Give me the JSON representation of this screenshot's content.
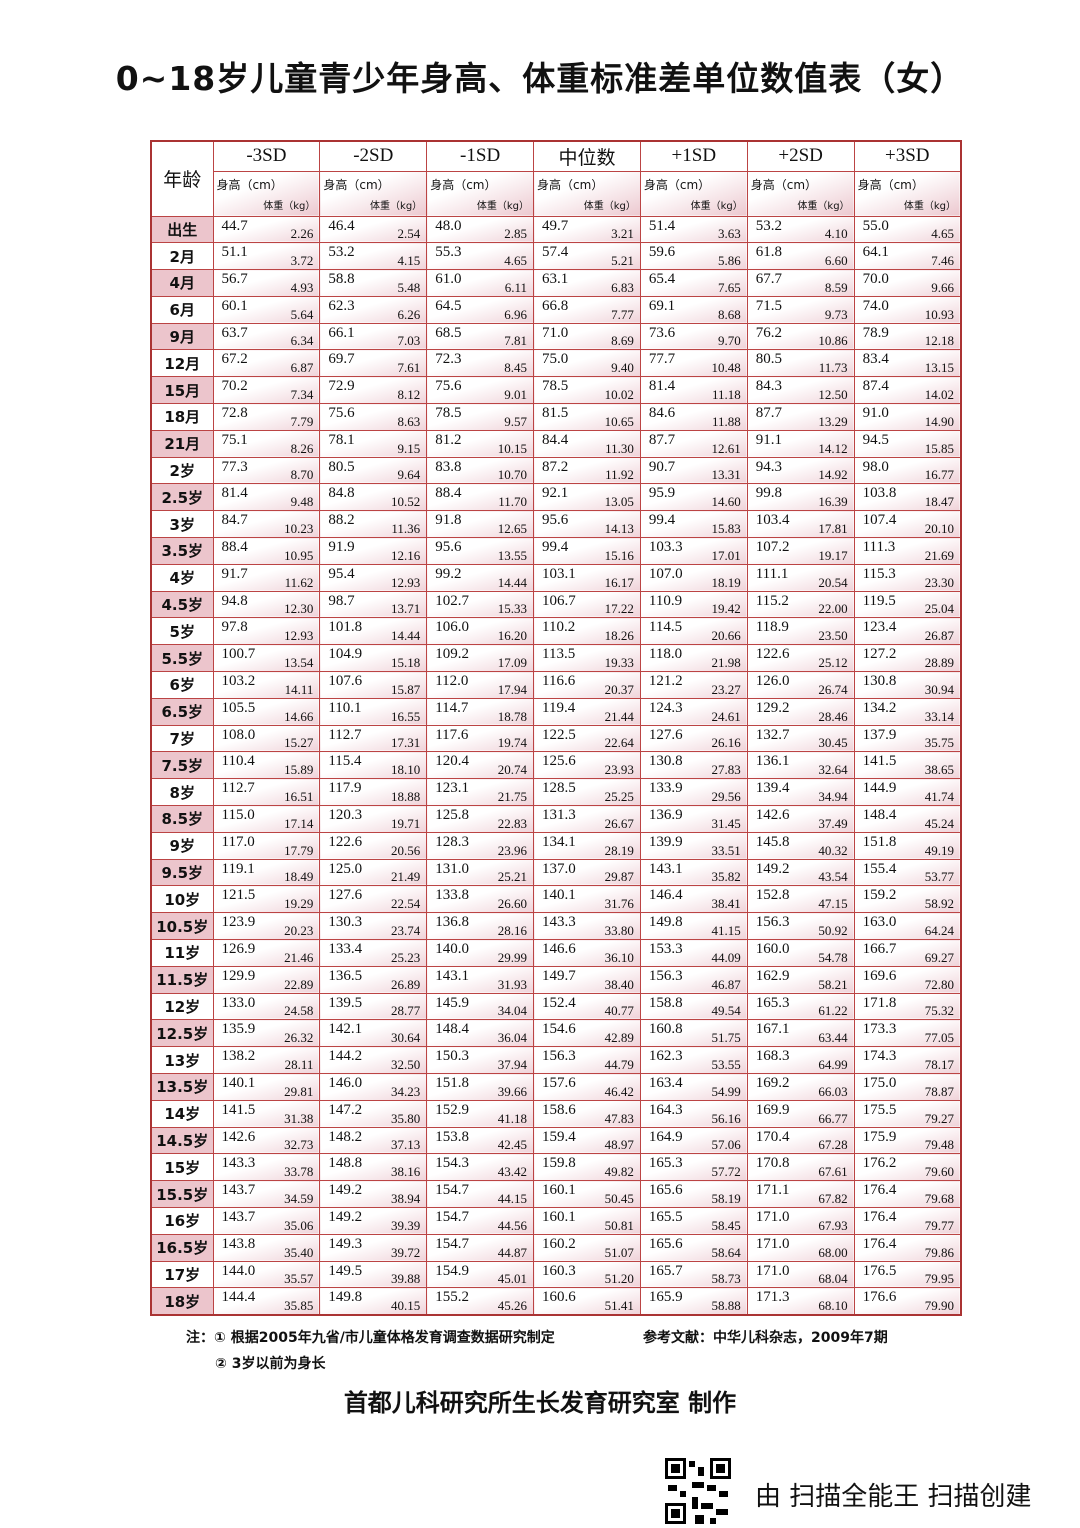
{
  "title": "0~18岁儿童青少年身高、体重标准差单位数值表（女）",
  "header": {
    "age": "年龄",
    "columns": [
      "-3SD",
      "-2SD",
      "-1SD",
      "中位数",
      "+1SD",
      "+2SD",
      "+3SD"
    ],
    "height_label": "身高（cm）",
    "weight_label": "体重（kg）"
  },
  "rows": [
    [
      "出生",
      [
        "44.7",
        "2.26"
      ],
      [
        "46.4",
        "2.54"
      ],
      [
        "48.0",
        "2.85"
      ],
      [
        "49.7",
        "3.21"
      ],
      [
        "51.4",
        "3.63"
      ],
      [
        "53.2",
        "4.10"
      ],
      [
        "55.0",
        "4.65"
      ]
    ],
    [
      "2月",
      [
        "51.1",
        "3.72"
      ],
      [
        "53.2",
        "4.15"
      ],
      [
        "55.3",
        "4.65"
      ],
      [
        "57.4",
        "5.21"
      ],
      [
        "59.6",
        "5.86"
      ],
      [
        "61.8",
        "6.60"
      ],
      [
        "64.1",
        "7.46"
      ]
    ],
    [
      "4月",
      [
        "56.7",
        "4.93"
      ],
      [
        "58.8",
        "5.48"
      ],
      [
        "61.0",
        "6.11"
      ],
      [
        "63.1",
        "6.83"
      ],
      [
        "65.4",
        "7.65"
      ],
      [
        "67.7",
        "8.59"
      ],
      [
        "70.0",
        "9.66"
      ]
    ],
    [
      "6月",
      [
        "60.1",
        "5.64"
      ],
      [
        "62.3",
        "6.26"
      ],
      [
        "64.5",
        "6.96"
      ],
      [
        "66.8",
        "7.77"
      ],
      [
        "69.1",
        "8.68"
      ],
      [
        "71.5",
        "9.73"
      ],
      [
        "74.0",
        "10.93"
      ]
    ],
    [
      "9月",
      [
        "63.7",
        "6.34"
      ],
      [
        "66.1",
        "7.03"
      ],
      [
        "68.5",
        "7.81"
      ],
      [
        "71.0",
        "8.69"
      ],
      [
        "73.6",
        "9.70"
      ],
      [
        "76.2",
        "10.86"
      ],
      [
        "78.9",
        "12.18"
      ]
    ],
    [
      "12月",
      [
        "67.2",
        "6.87"
      ],
      [
        "69.7",
        "7.61"
      ],
      [
        "72.3",
        "8.45"
      ],
      [
        "75.0",
        "9.40"
      ],
      [
        "77.7",
        "10.48"
      ],
      [
        "80.5",
        "11.73"
      ],
      [
        "83.4",
        "13.15"
      ]
    ],
    [
      "15月",
      [
        "70.2",
        "7.34"
      ],
      [
        "72.9",
        "8.12"
      ],
      [
        "75.6",
        "9.01"
      ],
      [
        "78.5",
        "10.02"
      ],
      [
        "81.4",
        "11.18"
      ],
      [
        "84.3",
        "12.50"
      ],
      [
        "87.4",
        "14.02"
      ]
    ],
    [
      "18月",
      [
        "72.8",
        "7.79"
      ],
      [
        "75.6",
        "8.63"
      ],
      [
        "78.5",
        "9.57"
      ],
      [
        "81.5",
        "10.65"
      ],
      [
        "84.6",
        "11.88"
      ],
      [
        "87.7",
        "13.29"
      ],
      [
        "91.0",
        "14.90"
      ]
    ],
    [
      "21月",
      [
        "75.1",
        "8.26"
      ],
      [
        "78.1",
        "9.15"
      ],
      [
        "81.2",
        "10.15"
      ],
      [
        "84.4",
        "11.30"
      ],
      [
        "87.7",
        "12.61"
      ],
      [
        "91.1",
        "14.12"
      ],
      [
        "94.5",
        "15.85"
      ]
    ],
    [
      "2岁",
      [
        "77.3",
        "8.70"
      ],
      [
        "80.5",
        "9.64"
      ],
      [
        "83.8",
        "10.70"
      ],
      [
        "87.2",
        "11.92"
      ],
      [
        "90.7",
        "13.31"
      ],
      [
        "94.3",
        "14.92"
      ],
      [
        "98.0",
        "16.77"
      ]
    ],
    [
      "2.5岁",
      [
        "81.4",
        "9.48"
      ],
      [
        "84.8",
        "10.52"
      ],
      [
        "88.4",
        "11.70"
      ],
      [
        "92.1",
        "13.05"
      ],
      [
        "95.9",
        "14.60"
      ],
      [
        "99.8",
        "16.39"
      ],
      [
        "103.8",
        "18.47"
      ]
    ],
    [
      "3岁",
      [
        "84.7",
        "10.23"
      ],
      [
        "88.2",
        "11.36"
      ],
      [
        "91.8",
        "12.65"
      ],
      [
        "95.6",
        "14.13"
      ],
      [
        "99.4",
        "15.83"
      ],
      [
        "103.4",
        "17.81"
      ],
      [
        "107.4",
        "20.10"
      ]
    ],
    [
      "3.5岁",
      [
        "88.4",
        "10.95"
      ],
      [
        "91.9",
        "12.16"
      ],
      [
        "95.6",
        "13.55"
      ],
      [
        "99.4",
        "15.16"
      ],
      [
        "103.3",
        "17.01"
      ],
      [
        "107.2",
        "19.17"
      ],
      [
        "111.3",
        "21.69"
      ]
    ],
    [
      "4岁",
      [
        "91.7",
        "11.62"
      ],
      [
        "95.4",
        "12.93"
      ],
      [
        "99.2",
        "14.44"
      ],
      [
        "103.1",
        "16.17"
      ],
      [
        "107.0",
        "18.19"
      ],
      [
        "111.1",
        "20.54"
      ],
      [
        "115.3",
        "23.30"
      ]
    ],
    [
      "4.5岁",
      [
        "94.8",
        "12.30"
      ],
      [
        "98.7",
        "13.71"
      ],
      [
        "102.7",
        "15.33"
      ],
      [
        "106.7",
        "17.22"
      ],
      [
        "110.9",
        "19.42"
      ],
      [
        "115.2",
        "22.00"
      ],
      [
        "119.5",
        "25.04"
      ]
    ],
    [
      "5岁",
      [
        "97.8",
        "12.93"
      ],
      [
        "101.8",
        "14.44"
      ],
      [
        "106.0",
        "16.20"
      ],
      [
        "110.2",
        "18.26"
      ],
      [
        "114.5",
        "20.66"
      ],
      [
        "118.9",
        "23.50"
      ],
      [
        "123.4",
        "26.87"
      ]
    ],
    [
      "5.5岁",
      [
        "100.7",
        "13.54"
      ],
      [
        "104.9",
        "15.18"
      ],
      [
        "109.2",
        "17.09"
      ],
      [
        "113.5",
        "19.33"
      ],
      [
        "118.0",
        "21.98"
      ],
      [
        "122.6",
        "25.12"
      ],
      [
        "127.2",
        "28.89"
      ]
    ],
    [
      "6岁",
      [
        "103.2",
        "14.11"
      ],
      [
        "107.6",
        "15.87"
      ],
      [
        "112.0",
        "17.94"
      ],
      [
        "116.6",
        "20.37"
      ],
      [
        "121.2",
        "23.27"
      ],
      [
        "126.0",
        "26.74"
      ],
      [
        "130.8",
        "30.94"
      ]
    ],
    [
      "6.5岁",
      [
        "105.5",
        "14.66"
      ],
      [
        "110.1",
        "16.55"
      ],
      [
        "114.7",
        "18.78"
      ],
      [
        "119.4",
        "21.44"
      ],
      [
        "124.3",
        "24.61"
      ],
      [
        "129.2",
        "28.46"
      ],
      [
        "134.2",
        "33.14"
      ]
    ],
    [
      "7岁",
      [
        "108.0",
        "15.27"
      ],
      [
        "112.7",
        "17.31"
      ],
      [
        "117.6",
        "19.74"
      ],
      [
        "122.5",
        "22.64"
      ],
      [
        "127.6",
        "26.16"
      ],
      [
        "132.7",
        "30.45"
      ],
      [
        "137.9",
        "35.75"
      ]
    ],
    [
      "7.5岁",
      [
        "110.4",
        "15.89"
      ],
      [
        "115.4",
        "18.10"
      ],
      [
        "120.4",
        "20.74"
      ],
      [
        "125.6",
        "23.93"
      ],
      [
        "130.8",
        "27.83"
      ],
      [
        "136.1",
        "32.64"
      ],
      [
        "141.5",
        "38.65"
      ]
    ],
    [
      "8岁",
      [
        "112.7",
        "16.51"
      ],
      [
        "117.9",
        "18.88"
      ],
      [
        "123.1",
        "21.75"
      ],
      [
        "128.5",
        "25.25"
      ],
      [
        "133.9",
        "29.56"
      ],
      [
        "139.4",
        "34.94"
      ],
      [
        "144.9",
        "41.74"
      ]
    ],
    [
      "8.5岁",
      [
        "115.0",
        "17.14"
      ],
      [
        "120.3",
        "19.71"
      ],
      [
        "125.8",
        "22.83"
      ],
      [
        "131.3",
        "26.67"
      ],
      [
        "136.9",
        "31.45"
      ],
      [
        "142.6",
        "37.49"
      ],
      [
        "148.4",
        "45.24"
      ]
    ],
    [
      "9岁",
      [
        "117.0",
        "17.79"
      ],
      [
        "122.6",
        "20.56"
      ],
      [
        "128.3",
        "23.96"
      ],
      [
        "134.1",
        "28.19"
      ],
      [
        "139.9",
        "33.51"
      ],
      [
        "145.8",
        "40.32"
      ],
      [
        "151.8",
        "49.19"
      ]
    ],
    [
      "9.5岁",
      [
        "119.1",
        "18.49"
      ],
      [
        "125.0",
        "21.49"
      ],
      [
        "131.0",
        "25.21"
      ],
      [
        "137.0",
        "29.87"
      ],
      [
        "143.1",
        "35.82"
      ],
      [
        "149.2",
        "43.54"
      ],
      [
        "155.4",
        "53.77"
      ]
    ],
    [
      "10岁",
      [
        "121.5",
        "19.29"
      ],
      [
        "127.6",
        "22.54"
      ],
      [
        "133.8",
        "26.60"
      ],
      [
        "140.1",
        "31.76"
      ],
      [
        "146.4",
        "38.41"
      ],
      [
        "152.8",
        "47.15"
      ],
      [
        "159.2",
        "58.92"
      ]
    ],
    [
      "10.5岁",
      [
        "123.9",
        "20.23"
      ],
      [
        "130.3",
        "23.74"
      ],
      [
        "136.8",
        "28.16"
      ],
      [
        "143.3",
        "33.80"
      ],
      [
        "149.8",
        "41.15"
      ],
      [
        "156.3",
        "50.92"
      ],
      [
        "163.0",
        "64.24"
      ]
    ],
    [
      "11岁",
      [
        "126.9",
        "21.46"
      ],
      [
        "133.4",
        "25.23"
      ],
      [
        "140.0",
        "29.99"
      ],
      [
        "146.6",
        "36.10"
      ],
      [
        "153.3",
        "44.09"
      ],
      [
        "160.0",
        "54.78"
      ],
      [
        "166.7",
        "69.27"
      ]
    ],
    [
      "11.5岁",
      [
        "129.9",
        "22.89"
      ],
      [
        "136.5",
        "26.89"
      ],
      [
        "143.1",
        "31.93"
      ],
      [
        "149.7",
        "38.40"
      ],
      [
        "156.3",
        "46.87"
      ],
      [
        "162.9",
        "58.21"
      ],
      [
        "169.6",
        "72.80"
      ]
    ],
    [
      "12岁",
      [
        "133.0",
        "24.58"
      ],
      [
        "139.5",
        "28.77"
      ],
      [
        "145.9",
        "34.04"
      ],
      [
        "152.4",
        "40.77"
      ],
      [
        "158.8",
        "49.54"
      ],
      [
        "165.3",
        "61.22"
      ],
      [
        "171.8",
        "75.32"
      ]
    ],
    [
      "12.5岁",
      [
        "135.9",
        "26.32"
      ],
      [
        "142.1",
        "30.64"
      ],
      [
        "148.4",
        "36.04"
      ],
      [
        "154.6",
        "42.89"
      ],
      [
        "160.8",
        "51.75"
      ],
      [
        "167.1",
        "63.44"
      ],
      [
        "173.3",
        "77.05"
      ]
    ],
    [
      "13岁",
      [
        "138.2",
        "28.11"
      ],
      [
        "144.2",
        "32.50"
      ],
      [
        "150.3",
        "37.94"
      ],
      [
        "156.3",
        "44.79"
      ],
      [
        "162.3",
        "53.55"
      ],
      [
        "168.3",
        "64.99"
      ],
      [
        "174.3",
        "78.17"
      ]
    ],
    [
      "13.5岁",
      [
        "140.1",
        "29.81"
      ],
      [
        "146.0",
        "34.23"
      ],
      [
        "151.8",
        "39.66"
      ],
      [
        "157.6",
        "46.42"
      ],
      [
        "163.4",
        "54.99"
      ],
      [
        "169.2",
        "66.03"
      ],
      [
        "175.0",
        "78.87"
      ]
    ],
    [
      "14岁",
      [
        "141.5",
        "31.38"
      ],
      [
        "147.2",
        "35.80"
      ],
      [
        "152.9",
        "41.18"
      ],
      [
        "158.6",
        "47.83"
      ],
      [
        "164.3",
        "56.16"
      ],
      [
        "169.9",
        "66.77"
      ],
      [
        "175.5",
        "79.27"
      ]
    ],
    [
      "14.5岁",
      [
        "142.6",
        "32.73"
      ],
      [
        "148.2",
        "37.13"
      ],
      [
        "153.8",
        "42.45"
      ],
      [
        "159.4",
        "48.97"
      ],
      [
        "164.9",
        "57.06"
      ],
      [
        "170.4",
        "67.28"
      ],
      [
        "175.9",
        "79.48"
      ]
    ],
    [
      "15岁",
      [
        "143.3",
        "33.78"
      ],
      [
        "148.8",
        "38.16"
      ],
      [
        "154.3",
        "43.42"
      ],
      [
        "159.8",
        "49.82"
      ],
      [
        "165.3",
        "57.72"
      ],
      [
        "170.8",
        "67.61"
      ],
      [
        "176.2",
        "79.60"
      ]
    ],
    [
      "15.5岁",
      [
        "143.7",
        "34.59"
      ],
      [
        "149.2",
        "38.94"
      ],
      [
        "154.7",
        "44.15"
      ],
      [
        "160.1",
        "50.45"
      ],
      [
        "165.6",
        "58.19"
      ],
      [
        "171.1",
        "67.82"
      ],
      [
        "176.4",
        "79.68"
      ]
    ],
    [
      "16岁",
      [
        "143.7",
        "35.06"
      ],
      [
        "149.2",
        "39.39"
      ],
      [
        "154.7",
        "44.56"
      ],
      [
        "160.1",
        "50.81"
      ],
      [
        "165.5",
        "58.45"
      ],
      [
        "171.0",
        "67.93"
      ],
      [
        "176.4",
        "79.77"
      ]
    ],
    [
      "16.5岁",
      [
        "143.8",
        "35.40"
      ],
      [
        "149.3",
        "39.72"
      ],
      [
        "154.7",
        "44.87"
      ],
      [
        "160.2",
        "51.07"
      ],
      [
        "165.6",
        "58.64"
      ],
      [
        "171.0",
        "68.00"
      ],
      [
        "176.4",
        "79.86"
      ]
    ],
    [
      "17岁",
      [
        "144.0",
        "35.57"
      ],
      [
        "149.5",
        "39.88"
      ],
      [
        "154.9",
        "45.01"
      ],
      [
        "160.3",
        "51.20"
      ],
      [
        "165.7",
        "58.73"
      ],
      [
        "171.0",
        "68.04"
      ],
      [
        "176.5",
        "79.95"
      ]
    ],
    [
      "18岁",
      [
        "144.4",
        "35.85"
      ],
      [
        "149.8",
        "40.15"
      ],
      [
        "155.2",
        "45.26"
      ],
      [
        "160.6",
        "51.41"
      ],
      [
        "165.9",
        "58.88"
      ],
      [
        "171.3",
        "68.10"
      ],
      [
        "176.6",
        "79.90"
      ]
    ]
  ],
  "notes": {
    "note1": "注：① 根据2005年九省/市儿童体格发育调查数据研究制定",
    "note2": "② 3岁以前为身长",
    "reference": "参考文献：中华儿科杂志，2009年7期"
  },
  "maker": "首都儿科研究所生长发育研究室  制作",
  "scan_watermark": "由 扫描全能王 扫描创建",
  "colors": {
    "border": "#b44444",
    "pink": "#ecc5cc"
  }
}
